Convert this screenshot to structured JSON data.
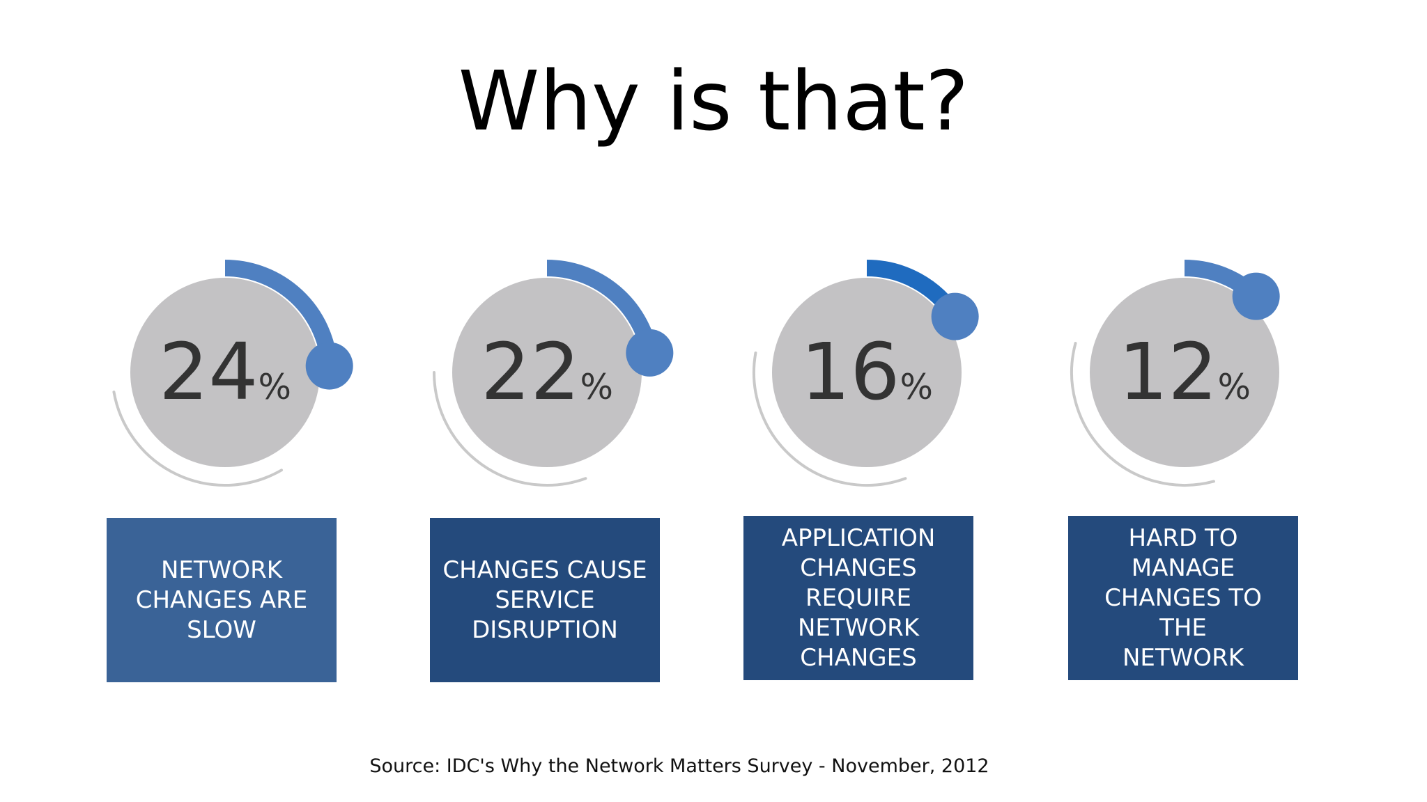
{
  "title": "Why is that?",
  "source": "Source: IDC's Why the Network Matters Survey - November, 2012",
  "colors": {
    "box_primary": "#3a6397",
    "box_secondary": "#244a7c",
    "arc_light": "#4f80c1",
    "arc_dark": "#1f6bbf",
    "ring": "#c9c9c9",
    "disc": "#c3c2c4"
  },
  "chart_data": {
    "type": "gauge",
    "percent_symbol": "%",
    "items": [
      {
        "value": 24,
        "label": "NETWORK\nCHANGES ARE\nSLOW"
      },
      {
        "value": 22,
        "label": "CHANGES CAUSE\nSERVICE\nDISRUPTION"
      },
      {
        "value": 16,
        "label": "APPLICATION\nCHANGES\nREQUIRE\nNETWORK\nCHANGES"
      },
      {
        "value": 12,
        "label": "HARD TO\nMANAGE\nCHANGES TO THE\nNETWORK"
      }
    ]
  }
}
